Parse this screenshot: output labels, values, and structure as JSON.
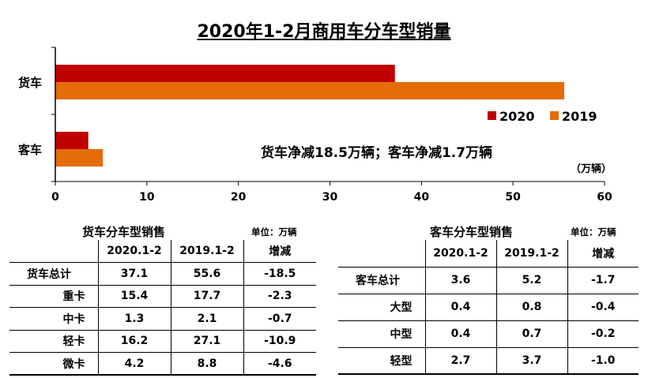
{
  "chart_data": {
    "type": "bar",
    "orientation": "horizontal",
    "title": "2020年1-2月商用车分车型销量",
    "categories": [
      "货车",
      "客车"
    ],
    "series": [
      {
        "name": "2020",
        "values": [
          37.1,
          3.6
        ],
        "color": "#C00000"
      },
      {
        "name": "2019",
        "values": [
          55.6,
          5.2
        ],
        "color": "#E46C0A"
      }
    ],
    "xlim": [
      0,
      60
    ],
    "xticks": [
      "0",
      "10",
      "20",
      "30",
      "40",
      "50",
      "60"
    ],
    "unit": "（万辆）",
    "annotation": "货车净减18.5万辆；客车净减1.7万辆",
    "legend": "right",
    "grid": false
  },
  "truck_table": {
    "title": "货车分车型销售",
    "unit": "单位：万辆",
    "headers": [
      "",
      "2020.1-2",
      "2019.1-2",
      "增减"
    ],
    "rows": [
      [
        "货车总计",
        "37.1",
        "55.6",
        "-18.5"
      ],
      [
        "重卡",
        "15.4",
        "17.7",
        "-2.3"
      ],
      [
        "中卡",
        "1.3",
        "2.1",
        "-0.7"
      ],
      [
        "轻卡",
        "16.2",
        "27.1",
        "-10.9"
      ],
      [
        "微卡",
        "4.2",
        "8.8",
        "-4.6"
      ]
    ]
  },
  "bus_table": {
    "title": "客车分车型销售",
    "unit": "单位：万辆",
    "headers": [
      "",
      "2020.1-2",
      "2019.1-2",
      "增减"
    ],
    "rows": [
      [
        "客车总计",
        "3.6",
        "5.2",
        "-1.7"
      ],
      [
        "大型",
        "0.4",
        "0.8",
        "-0.4"
      ],
      [
        "中型",
        "0.4",
        "0.7",
        "-0.2"
      ],
      [
        "轻型",
        "2.7",
        "3.7",
        "-1.0"
      ]
    ]
  }
}
